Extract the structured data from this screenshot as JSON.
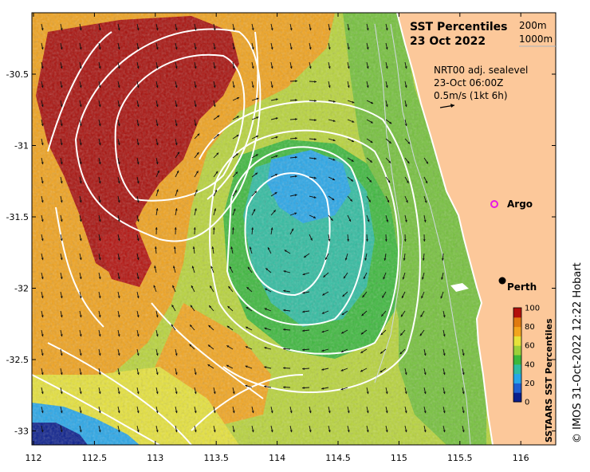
{
  "title_line1": "SST Percentiles",
  "title_line2": "23 Oct 2022",
  "depth_legend": {
    "contour_a": "200m",
    "contour_b": "1000m"
  },
  "currents_note": {
    "line1": "NRT00 adj. sealevel",
    "line2": "23-Oct 06:00Z",
    "line3": "0.5m/s (1kt 6h)"
  },
  "places": {
    "argo": "Argo",
    "perth": "Perth"
  },
  "colorbar": {
    "label": "SSTAARS SST Percentiles",
    "ticks": [
      "100",
      "80",
      "60",
      "40",
      "20",
      "0"
    ],
    "colors": [
      "#0a1e8c",
      "#1f5fd0",
      "#27a6e8",
      "#2fbca0",
      "#3cb83c",
      "#9cd03a",
      "#e6e23a",
      "#f2a51e",
      "#e07a10",
      "#b3100c"
    ]
  },
  "credit": "© IMOS 31-Oct-2022 12:22 Hobart",
  "x_axis": {
    "ticks": [
      "112",
      "112.5",
      "113",
      "113.5",
      "114",
      "114.5",
      "115",
      "115.5",
      "116"
    ]
  },
  "y_axis": {
    "ticks": [
      "-30.5",
      "-31",
      "-31.5",
      "-32",
      "-32.5",
      "-33"
    ]
  },
  "land_color": "#fcc89a"
}
